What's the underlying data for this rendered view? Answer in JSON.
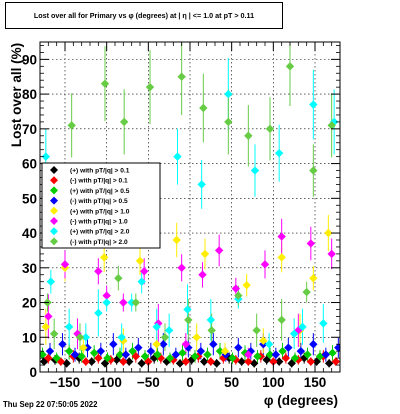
{
  "chart_data": {
    "type": "scatter",
    "title": "Lost over all for Primary vs φ (degrees) at |  η | <= 1.0 at pT > 0.11",
    "xlabel": "φ (degrees)",
    "ylabel": "Lost over all (%)",
    "xlim": [
      -180,
      180
    ],
    "ylim": [
      0,
      95
    ],
    "xticks": [
      -150,
      -100,
      -50,
      0,
      50,
      100,
      150
    ],
    "yticks": [
      0,
      10,
      20,
      30,
      40,
      50,
      60,
      70,
      80,
      90
    ],
    "grid": true,
    "legend_position": "left-middle",
    "timestamp": "Thu Sep 22 07:50:05 2022",
    "series": [
      {
        "name": "(+) with pT/|q| > 0.1",
        "color": "#000000",
        "points": [
          [
            -175,
            3
          ],
          [
            -162,
            3.5
          ],
          [
            -148,
            2.5
          ],
          [
            -133,
            4
          ],
          [
            -118,
            3
          ],
          [
            -102,
            2.5
          ],
          [
            -88,
            3.5
          ],
          [
            -73,
            3
          ],
          [
            -58,
            2.5
          ],
          [
            -43,
            4
          ],
          [
            -28,
            3
          ],
          [
            -12,
            2.5
          ],
          [
            2,
            3.5
          ],
          [
            17,
            3
          ],
          [
            32,
            2.5
          ],
          [
            47,
            4
          ],
          [
            62,
            3
          ],
          [
            77,
            2.5
          ],
          [
            92,
            3.5
          ],
          [
            107,
            3
          ],
          [
            122,
            2.5
          ],
          [
            137,
            4
          ],
          [
            152,
            3
          ],
          [
            167,
            2.5
          ]
        ]
      },
      {
        "name": "(-) with pT/|q| > 0.1",
        "color": "#ff0000",
        "points": [
          [
            -170,
            4
          ],
          [
            -155,
            3
          ],
          [
            -140,
            4.5
          ],
          [
            -125,
            3
          ],
          [
            -110,
            4
          ],
          [
            -95,
            3.5
          ],
          [
            -80,
            3
          ],
          [
            -65,
            4.5
          ],
          [
            -50,
            3
          ],
          [
            -35,
            4
          ],
          [
            -20,
            3.5
          ],
          [
            -5,
            3
          ],
          [
            10,
            4.5
          ],
          [
            25,
            3
          ],
          [
            40,
            4
          ],
          [
            55,
            3.5
          ],
          [
            70,
            3
          ],
          [
            85,
            4.5
          ],
          [
            100,
            3
          ],
          [
            115,
            4
          ],
          [
            130,
            3.5
          ],
          [
            145,
            3
          ],
          [
            160,
            4.5
          ],
          [
            175,
            3
          ]
        ]
      },
      {
        "name": "(+) with pT/|q| > 0.5",
        "color": "#00cc00",
        "points": [
          [
            -177,
            5
          ],
          [
            -160,
            4
          ],
          [
            -145,
            6
          ],
          [
            -130,
            4.5
          ],
          [
            -115,
            5.5
          ],
          [
            -99,
            4
          ],
          [
            -84,
            5
          ],
          [
            -69,
            6
          ],
          [
            -54,
            4.5
          ],
          [
            -39,
            5
          ],
          [
            -24,
            4
          ],
          [
            -9,
            5.5
          ],
          [
            6,
            4.5
          ],
          [
            21,
            5
          ],
          [
            36,
            6
          ],
          [
            51,
            4
          ],
          [
            66,
            5.5
          ],
          [
            81,
            4.5
          ],
          [
            96,
            5
          ],
          [
            111,
            6
          ],
          [
            126,
            4
          ],
          [
            141,
            5
          ],
          [
            156,
            4.5
          ],
          [
            171,
            5.5
          ]
        ]
      },
      {
        "name": "(-) with pT/|q| > 0.5",
        "color": "#0000ff",
        "points": [
          [
            -168,
            6
          ],
          [
            -153,
            8
          ],
          [
            -138,
            5
          ],
          [
            -123,
            7
          ],
          [
            -107,
            6
          ],
          [
            -92,
            8
          ],
          [
            -77,
            5
          ],
          [
            -62,
            7
          ],
          [
            -47,
            6
          ],
          [
            -32,
            8
          ],
          [
            -17,
            5
          ],
          [
            -2,
            7
          ],
          [
            13,
            6
          ],
          [
            28,
            8
          ],
          [
            43,
            5
          ],
          [
            58,
            7
          ],
          [
            73,
            6
          ],
          [
            88,
            8
          ],
          [
            103,
            5
          ],
          [
            118,
            7
          ],
          [
            133,
            6
          ],
          [
            148,
            8
          ],
          [
            163,
            5
          ],
          [
            178,
            7
          ]
        ]
      },
      {
        "name": "(+) with pT/|q| > 1.0",
        "color": "#ffee00",
        "points": [
          [
            -173,
            13
          ],
          [
            -150,
            30
          ],
          [
            -128,
            7
          ],
          [
            -103,
            33
          ],
          [
            -80,
            9
          ],
          [
            -60,
            32
          ],
          [
            -40,
            8
          ],
          [
            -16,
            38
          ],
          [
            8,
            10
          ],
          [
            18,
            34
          ],
          [
            42,
            6
          ],
          [
            68,
            25
          ],
          [
            88,
            9
          ],
          [
            110,
            33
          ],
          [
            132,
            12
          ],
          [
            148,
            27
          ],
          [
            166,
            40
          ]
        ]
      },
      {
        "name": "(-) with pT/|q| > 1.0",
        "color": "#ff00ff",
        "points": [
          [
            -170,
            16
          ],
          [
            -150,
            31
          ],
          [
            -135,
            11
          ],
          [
            -110,
            29
          ],
          [
            -100,
            22
          ],
          [
            -80,
            20
          ],
          [
            -55,
            29
          ],
          [
            -38,
            14
          ],
          [
            -10,
            30
          ],
          [
            -5,
            8
          ],
          [
            15,
            28
          ],
          [
            35,
            35
          ],
          [
            55,
            24
          ],
          [
            70,
            5
          ],
          [
            90,
            31
          ],
          [
            110,
            39
          ],
          [
            130,
            12
          ],
          [
            145,
            37
          ],
          [
            170,
            34
          ]
        ]
      },
      {
        "name": "(+) with pT/|q| > 2.0",
        "color": "#00ffff",
        "points": [
          [
            -173,
            62
          ],
          [
            -167,
            26
          ],
          [
            -155,
            50
          ],
          [
            -145,
            13
          ],
          [
            -125,
            10
          ],
          [
            -110,
            17
          ],
          [
            -100,
            20
          ],
          [
            -82,
            10
          ],
          [
            -70,
            20
          ],
          [
            -58,
            26
          ],
          [
            -40,
            13
          ],
          [
            -25,
            12
          ],
          [
            -15,
            62
          ],
          [
            -3,
            18
          ],
          [
            14,
            54
          ],
          [
            25,
            15
          ],
          [
            46,
            80
          ],
          [
            58,
            21
          ],
          [
            78,
            58
          ],
          [
            95,
            8
          ],
          [
            107,
            63
          ],
          [
            125,
            11
          ],
          [
            135,
            13
          ],
          [
            148,
            77
          ],
          [
            160,
            14
          ],
          [
            173,
            72
          ]
        ]
      },
      {
        "name": "(-) with pT/|q| > 2.0",
        "color": "#66cc44",
        "points": [
          [
            -171,
            20
          ],
          [
            -163,
            11
          ],
          [
            -142,
            71
          ],
          [
            -132,
            10
          ],
          [
            -102,
            83
          ],
          [
            -86,
            27
          ],
          [
            -79,
            72
          ],
          [
            -65,
            20
          ],
          [
            -48,
            82
          ],
          [
            -30,
            10
          ],
          [
            -10,
            85
          ],
          [
            -2,
            15
          ],
          [
            16,
            76
          ],
          [
            26,
            12
          ],
          [
            46,
            72
          ],
          [
            58,
            22
          ],
          [
            70,
            68
          ],
          [
            80,
            12
          ],
          [
            96,
            70
          ],
          [
            110,
            15
          ],
          [
            120,
            88
          ],
          [
            140,
            23
          ],
          [
            148,
            58
          ],
          [
            170,
            71
          ]
        ]
      }
    ]
  }
}
